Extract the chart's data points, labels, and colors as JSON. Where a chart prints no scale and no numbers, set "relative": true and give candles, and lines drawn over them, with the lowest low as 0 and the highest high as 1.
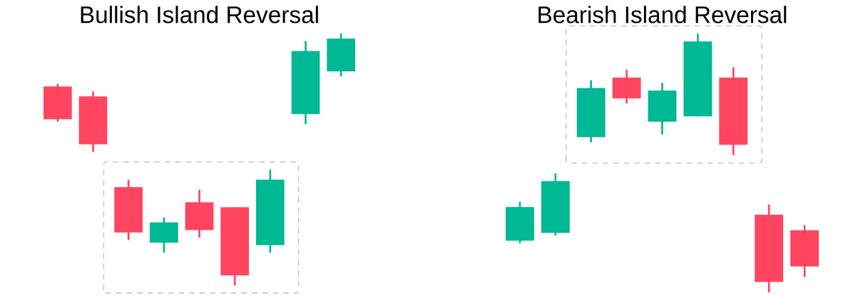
{
  "chart_data": [
    {
      "type": "candlestick",
      "title": "Bullish Island Reversal",
      "relative": true,
      "categories": [
        null,
        null,
        null,
        null,
        null,
        null,
        null,
        null,
        null
      ],
      "ohlc": [
        [
          0.79,
          0.8,
          0.65,
          0.66
        ],
        [
          0.75,
          0.77,
          0.53,
          0.56
        ],
        [
          0.39,
          0.42,
          0.18,
          0.21
        ],
        [
          0.17,
          0.27,
          0.13,
          0.25
        ],
        [
          0.33,
          0.38,
          0.19,
          0.22
        ],
        [
          0.31,
          0.31,
          0.0,
          0.04
        ],
        [
          0.16,
          0.46,
          0.13,
          0.42
        ],
        [
          0.68,
          0.97,
          0.64,
          0.93
        ],
        [
          0.85,
          1.0,
          0.83,
          0.98
        ]
      ],
      "colors": [
        "#ff4560",
        "#ff4560",
        "#ff4560",
        "#00b894",
        "#ff4560",
        "#ff4560",
        "#00b894",
        "#00b894",
        "#00b894"
      ]
    },
    {
      "type": "candlestick",
      "title": "Bearish Island Reversal",
      "relative": true,
      "categories": [
        null,
        null,
        null,
        null,
        null,
        null,
        null,
        null,
        null
      ],
      "ohlc": [
        [
          0.2,
          0.35,
          0.19,
          0.33
        ],
        [
          0.23,
          0.46,
          0.22,
          0.43
        ],
        [
          0.6,
          0.82,
          0.58,
          0.79
        ],
        [
          0.83,
          0.86,
          0.73,
          0.75
        ],
        [
          0.66,
          0.81,
          0.61,
          0.78
        ],
        [
          0.68,
          1.0,
          0.68,
          0.97
        ],
        [
          0.83,
          0.87,
          0.53,
          0.57
        ],
        [
          0.3,
          0.34,
          0.0,
          0.04
        ],
        [
          0.24,
          0.26,
          0.06,
          0.1
        ]
      ],
      "colors": [
        "#00b894",
        "#00b894",
        "#00b894",
        "#ff4560",
        "#00b894",
        "#00b894",
        "#ff4560",
        "#ff4560",
        "#ff4560"
      ]
    }
  ]
}
